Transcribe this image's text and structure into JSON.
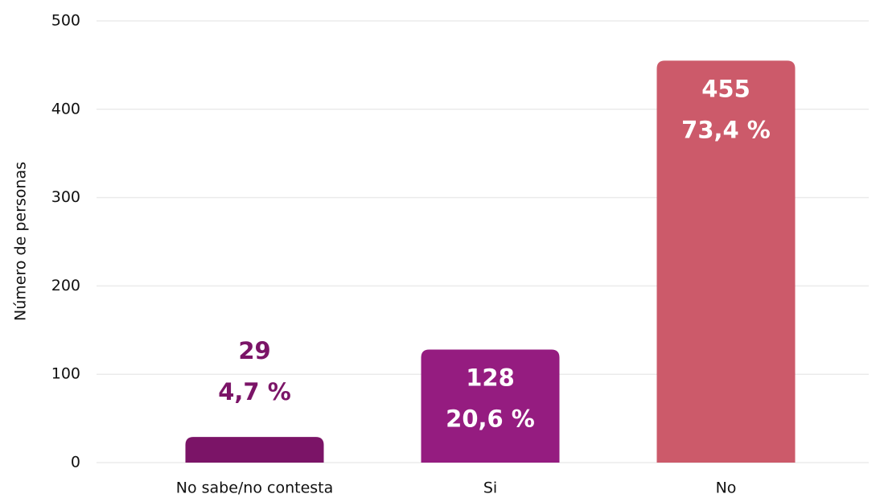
{
  "chart_data": {
    "type": "bar",
    "y_label": "Número de personas",
    "categories": [
      "No sabe/no contesta",
      "Si",
      "No"
    ],
    "values": [
      29,
      128,
      455
    ],
    "percent_labels": [
      "4,7 %",
      "20,6 %",
      "73,4 %"
    ],
    "colors": [
      "#7b1467",
      "#951c80",
      "#cc5a6a"
    ],
    "ylim": [
      0,
      500
    ],
    "yticks": [
      0,
      100,
      200,
      300,
      400,
      500
    ],
    "grid": true
  }
}
